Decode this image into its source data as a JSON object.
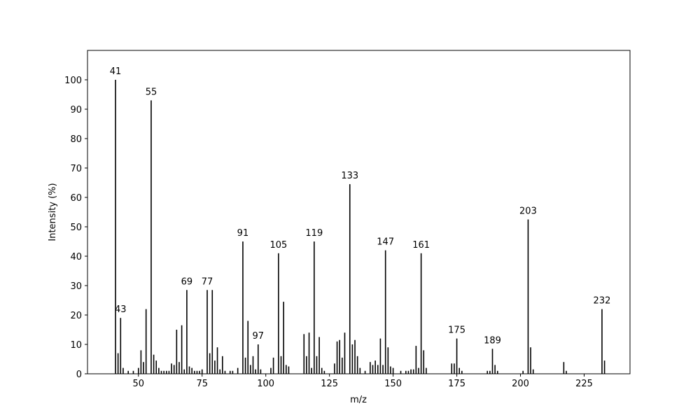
{
  "chart_data": {
    "type": "stem",
    "xlabel": "m/z",
    "ylabel": "Intensity (%)",
    "color": "#000000",
    "x": [
      41,
      42,
      43,
      44,
      46,
      48,
      50,
      51,
      52,
      53,
      55,
      56,
      57,
      58,
      59,
      60,
      61,
      62,
      63,
      64,
      65,
      66,
      67,
      68,
      69,
      70,
      71,
      72,
      73,
      74,
      75,
      77,
      78,
      79,
      80,
      81,
      82,
      83,
      84,
      86,
      87,
      89,
      91,
      92,
      93,
      94,
      95,
      96,
      97,
      98,
      102,
      103,
      105,
      106,
      107,
      108,
      109,
      115,
      116,
      117,
      118,
      119,
      120,
      121,
      122,
      123,
      127,
      128,
      129,
      130,
      131,
      133,
      134,
      135,
      136,
      137,
      139,
      141,
      142,
      143,
      144,
      145,
      146,
      147,
      148,
      149,
      150,
      153,
      155,
      156,
      157,
      158,
      159,
      160,
      161,
      162,
      163,
      173,
      174,
      175,
      176,
      177,
      187,
      188,
      189,
      190,
      191,
      201,
      203,
      204,
      205,
      217,
      218,
      232,
      233
    ],
    "values": [
      100,
      7,
      19,
      2,
      1,
      1,
      2,
      8,
      4,
      22,
      93,
      6.5,
      4.5,
      2,
      1,
      1,
      1,
      1,
      3.5,
      3,
      15,
      4,
      16.5,
      1.5,
      28.5,
      2.5,
      2,
      1,
      1,
      1,
      1.5,
      28.5,
      7,
      28.5,
      4.5,
      9,
      1.5,
      6,
      1,
      1,
      1,
      2,
      45,
      5.5,
      18,
      3,
      6,
      1.5,
      10,
      1.5,
      2,
      5.5,
      41,
      6,
      24.5,
      3,
      2.5,
      13.5,
      6,
      14,
      2,
      45,
      6,
      12.5,
      2,
      1,
      3.5,
      11,
      11.5,
      5.5,
      14,
      64.5,
      10,
      11.5,
      6,
      2,
      1,
      4,
      3,
      4.5,
      3,
      12,
      3,
      42,
      9,
      2.5,
      2,
      1,
      1,
      1,
      1.5,
      1.5,
      9.5,
      2,
      41,
      8,
      2,
      3.5,
      3.5,
      12,
      2,
      1,
      1,
      1,
      8.5,
      3,
      1,
      1,
      52.5,
      9,
      1.5,
      4,
      1,
      22,
      4.5
    ],
    "peak_labels": [
      "41",
      null,
      "43",
      null,
      null,
      null,
      null,
      null,
      null,
      null,
      "55",
      null,
      null,
      null,
      null,
      null,
      null,
      null,
      null,
      null,
      null,
      null,
      null,
      null,
      "69",
      null,
      null,
      null,
      null,
      null,
      null,
      "77",
      null,
      null,
      null,
      null,
      null,
      null,
      null,
      null,
      null,
      null,
      "91",
      null,
      null,
      null,
      null,
      null,
      "97",
      null,
      null,
      null,
      "105",
      null,
      null,
      null,
      null,
      null,
      null,
      null,
      null,
      "119",
      null,
      null,
      null,
      null,
      null,
      null,
      null,
      null,
      null,
      "133",
      null,
      null,
      null,
      null,
      null,
      null,
      null,
      null,
      null,
      null,
      null,
      "147",
      null,
      null,
      null,
      null,
      null,
      null,
      null,
      null,
      null,
      null,
      "161",
      null,
      null,
      null,
      null,
      "175",
      null,
      null,
      null,
      null,
      "189",
      null,
      null,
      null,
      "203",
      null,
      null,
      null,
      null,
      "232",
      null
    ],
    "xlim": [
      30,
      243
    ],
    "xticks": [
      50,
      75,
      100,
      125,
      150,
      175,
      200,
      225
    ],
    "ylim": [
      0,
      110
    ],
    "yticks": [
      0,
      10,
      20,
      30,
      40,
      50,
      60,
      70,
      80,
      90,
      100
    ]
  }
}
